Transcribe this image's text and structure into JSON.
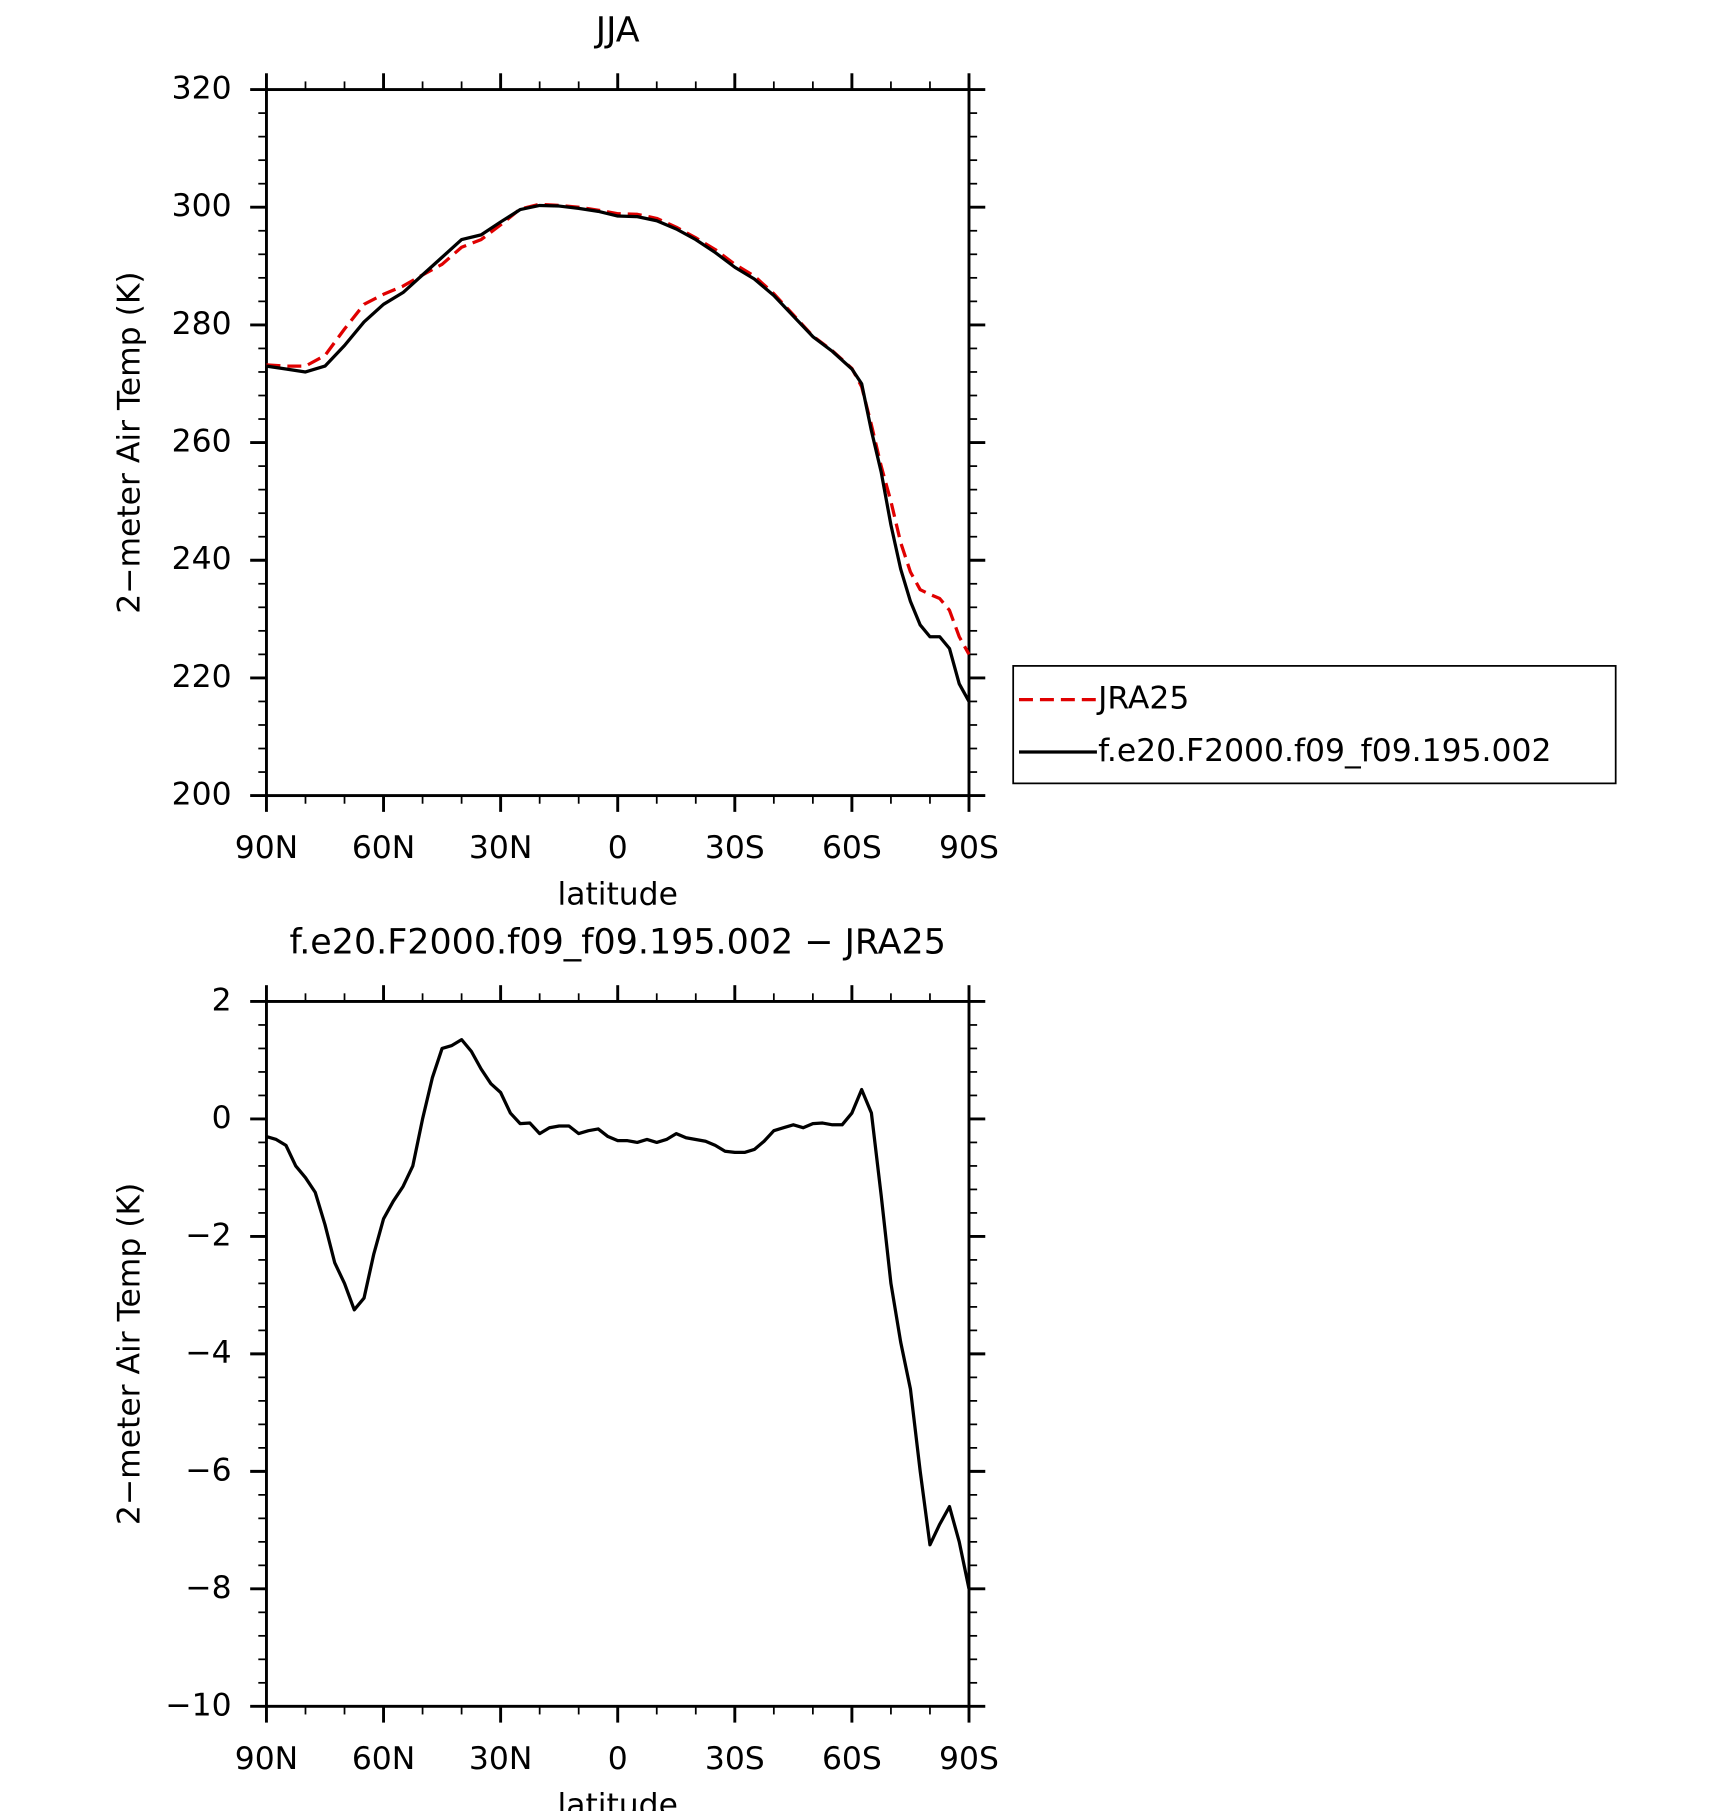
{
  "chart_data": [
    {
      "type": "line",
      "title": "JJA",
      "xlabel": "latitude",
      "ylabel": "2−meter Air Temp (K)",
      "x": [
        90,
        85,
        80,
        75,
        70,
        65,
        60,
        55,
        50,
        45,
        40,
        35,
        30,
        25,
        20,
        15,
        10,
        5,
        0,
        -5,
        -10,
        -15,
        -20,
        -25,
        -30,
        -35,
        -40,
        -45,
        -50,
        -55,
        -60,
        -62.5,
        -65,
        -67.5,
        -70,
        -72.5,
        -75,
        -77.5,
        -80,
        -82.5,
        -85,
        -87.5,
        -90
      ],
      "series": [
        {
          "name": "JRA25",
          "color": "#e00000",
          "style": "dashed",
          "values": [
            273.2,
            273,
            273,
            274.8,
            279.3,
            283.5,
            285.2,
            286.6,
            288.5,
            290.3,
            293.2,
            294.5,
            297,
            299.7,
            300.5,
            300.3,
            300,
            299.5,
            298.9,
            298.8,
            298.1,
            296.6,
            294.8,
            292.8,
            290.3,
            288.3,
            285.3,
            281.7,
            278.1,
            275.6,
            272.6,
            269.5,
            263,
            256,
            250,
            243,
            238,
            235,
            234.2,
            233.5,
            231.5,
            227,
            224
          ]
        },
        {
          "name": "f.e20.F2000.f09_f09.195.002",
          "color": "#000000",
          "style": "solid",
          "values": [
            273,
            272.5,
            272,
            273,
            276.5,
            280.5,
            283.5,
            285.5,
            288.5,
            291.5,
            294.5,
            295.3,
            297.5,
            299.6,
            300.3,
            300.2,
            299.8,
            299.3,
            298.5,
            298.4,
            297.7,
            296.3,
            294.5,
            292.3,
            289.8,
            287.8,
            285,
            281.5,
            278,
            275.5,
            272.5,
            270,
            262,
            255,
            246,
            238.5,
            233,
            229,
            227,
            227,
            225,
            219,
            216
          ]
        }
      ],
      "xlim": [
        90,
        -90
      ],
      "xticks": [
        {
          "value": 90,
          "label": "90N"
        },
        {
          "value": 60,
          "label": "60N"
        },
        {
          "value": 30,
          "label": "30N"
        },
        0,
        {
          "value": -30,
          "label": "30S"
        },
        {
          "value": -60,
          "label": "60S"
        },
        {
          "value": -90,
          "label": "90S"
        }
      ],
      "ylim": [
        200,
        320
      ],
      "yticks": [
        200,
        220,
        240,
        260,
        280,
        300,
        320
      ],
      "legend": "right"
    },
    {
      "type": "line",
      "title": "f.e20.F2000.f09_f09.195.002 − JRA25",
      "xlabel": "latitude",
      "ylabel": "2−meter Air Temp (K)",
      "x": [
        90,
        87.5,
        85,
        82.5,
        80,
        77.5,
        75,
        72.5,
        70,
        67.5,
        65,
        62.5,
        60,
        57.5,
        55,
        52.5,
        50,
        47.5,
        45,
        42.5,
        40,
        37.5,
        35,
        32.5,
        30,
        27.5,
        25,
        22.5,
        20,
        17.5,
        15,
        12.5,
        10,
        7.5,
        5,
        2.5,
        0,
        -2.5,
        -5,
        -7.5,
        -10,
        -12.5,
        -15,
        -17.5,
        -20,
        -22.5,
        -25,
        -27.5,
        -30,
        -32.5,
        -35,
        -37.5,
        -40,
        -42.5,
        -45,
        -47.5,
        -50,
        -52.5,
        -55,
        -57.5,
        -60,
        -62.5,
        -65,
        -67.5,
        -70,
        -72.5,
        -75,
        -77.5,
        -80,
        -82.5,
        -85,
        -87.5,
        -90
      ],
      "values": [
        -0.3,
        -0.35,
        -0.45,
        -0.8,
        -1.0,
        -1.25,
        -1.8,
        -2.45,
        -2.8,
        -3.25,
        -3.05,
        -2.3,
        -1.7,
        -1.4,
        -1.15,
        -0.8,
        0.0,
        0.7,
        1.2,
        1.25,
        1.35,
        1.15,
        0.85,
        0.6,
        0.45,
        0.1,
        -0.08,
        -0.07,
        -0.25,
        -0.15,
        -0.12,
        -0.12,
        -0.25,
        -0.2,
        -0.17,
        -0.3,
        -0.37,
        -0.37,
        -0.4,
        -0.35,
        -0.4,
        -0.35,
        -0.25,
        -0.32,
        -0.35,
        -0.38,
        -0.45,
        -0.55,
        -0.57,
        -0.57,
        -0.52,
        -0.38,
        -0.2,
        -0.15,
        -0.1,
        -0.15,
        -0.08,
        -0.07,
        -0.1,
        -0.1,
        0.1,
        0.5,
        0.1,
        -1.3,
        -2.8,
        -3.8,
        -4.6,
        -6.0,
        -7.25,
        -6.9,
        -6.6,
        -7.2,
        -8.0
      ],
      "color": "#000000",
      "xlim": [
        90,
        -90
      ],
      "xticks": [
        {
          "value": 90,
          "label": "90N"
        },
        {
          "value": 60,
          "label": "60N"
        },
        {
          "value": 30,
          "label": "30N"
        },
        0,
        {
          "value": -30,
          "label": "30S"
        },
        {
          "value": -60,
          "label": "60S"
        },
        {
          "value": -90,
          "label": "90S"
        }
      ],
      "ylim": [
        -10,
        2
      ],
      "yticks": [
        {
          "value": -10,
          "label": "−10"
        },
        {
          "value": -8,
          "label": "−8"
        },
        {
          "value": -6,
          "label": "−6"
        },
        {
          "value": -4,
          "label": "−4"
        },
        {
          "value": -2,
          "label": "−2"
        },
        0,
        2
      ]
    }
  ]
}
